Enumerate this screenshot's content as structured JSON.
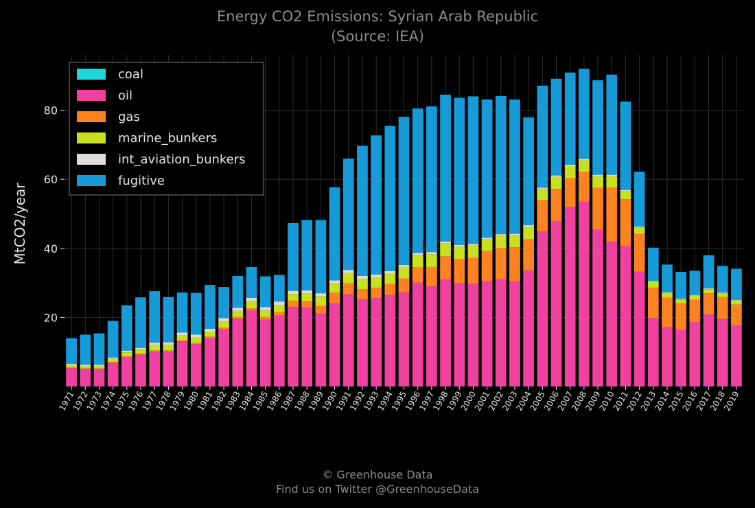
{
  "chart_data": {
    "type": "bar",
    "stacked": true,
    "title": "Energy CO2 Emissions: Syrian Arab Republic",
    "subtitle": "(Source: IEA)",
    "ylabel": "MtCO2/year",
    "xlabel": "",
    "ylim": [
      0,
      96
    ],
    "yticks": [
      20,
      40,
      60,
      80
    ],
    "grid": true,
    "legend_position": "top-left",
    "categories": [
      "1971",
      "1972",
      "1973",
      "1974",
      "1975",
      "1976",
      "1977",
      "1978",
      "1979",
      "1980",
      "1981",
      "1982",
      "1983",
      "1984",
      "1985",
      "1986",
      "1987",
      "1988",
      "1989",
      "1990",
      "1991",
      "1992",
      "1993",
      "1994",
      "1995",
      "1996",
      "1997",
      "1998",
      "1999",
      "2000",
      "2001",
      "2002",
      "2003",
      "2004",
      "2005",
      "2006",
      "2007",
      "2008",
      "2009",
      "2010",
      "2011",
      "2012",
      "2013",
      "2014",
      "2015",
      "2016",
      "2017",
      "2018",
      "2019"
    ],
    "series": [
      {
        "name": "coal",
        "color": "#1ed8d8",
        "values": [
          0,
          0,
          0,
          0,
          0,
          0,
          0,
          0,
          0,
          0,
          0,
          0,
          0,
          0,
          0,
          0,
          0,
          0,
          0,
          0,
          0,
          0,
          0,
          0,
          0,
          0,
          0,
          0,
          0,
          0,
          0,
          0,
          0,
          0,
          0,
          0,
          0,
          0,
          0,
          0,
          0,
          0,
          0,
          0,
          0,
          0,
          0,
          0,
          0
        ]
      },
      {
        "name": "oil",
        "color": "#f040a0",
        "values": [
          5.3,
          5.0,
          5.0,
          6.8,
          8.4,
          9.2,
          10.1,
          10.1,
          13.1,
          12.3,
          14.0,
          16.6,
          19.6,
          22.0,
          19.3,
          20.5,
          23.0,
          22.8,
          21.1,
          24.1,
          26.7,
          25.2,
          25.6,
          26.5,
          27.2,
          30.1,
          29.0,
          31.0,
          29.9,
          29.8,
          30.5,
          31.0,
          30.4,
          33.6,
          45.0,
          47.9,
          52.0,
          53.5,
          45.4,
          41.9,
          40.6,
          33.3,
          19.8,
          17.2,
          16.5,
          18.6,
          20.8,
          19.6,
          17.7
        ]
      },
      {
        "name": "gas",
        "color": "#ff8220",
        "values": [
          0.2,
          0.2,
          0.2,
          0.3,
          0.3,
          0.3,
          0.3,
          0.3,
          0.3,
          0.3,
          0.4,
          0.4,
          0.5,
          0.6,
          0.8,
          1.0,
          1.8,
          1.8,
          2.2,
          3.0,
          3.2,
          3.0,
          3.0,
          3.2,
          4.1,
          4.4,
          5.6,
          6.7,
          7.0,
          7.4,
          8.7,
          9.1,
          9.9,
          9.0,
          8.9,
          9.3,
          8.3,
          8.7,
          12.1,
          15.6,
          13.6,
          10.9,
          8.8,
          8.5,
          7.5,
          6.5,
          6.2,
          6.3,
          6.0
        ]
      },
      {
        "name": "marine_bunkers",
        "color": "#c8e020",
        "values": [
          0.7,
          0.7,
          0.7,
          0.9,
          1.2,
          1.2,
          1.6,
          1.7,
          1.5,
          1.6,
          1.5,
          1.9,
          1.8,
          2.0,
          1.9,
          2.1,
          2.0,
          2.3,
          2.8,
          2.8,
          3.0,
          3.0,
          3.0,
          3.0,
          3.3,
          3.6,
          3.7,
          3.8,
          3.6,
          3.6,
          3.4,
          3.6,
          3.5,
          3.7,
          3.3,
          3.5,
          3.5,
          3.3,
          3.4,
          3.4,
          2.4,
          1.9,
          1.7,
          1.4,
          1.2,
          1.2,
          1.2,
          1.1,
          1.2
        ]
      },
      {
        "name": "int_aviation_bunkers",
        "color": "#dcdcdc",
        "values": [
          0.4,
          0.4,
          0.4,
          0.4,
          0.5,
          0.5,
          0.7,
          0.7,
          0.7,
          0.8,
          0.8,
          0.9,
          0.9,
          1.1,
          1.0,
          1.0,
          0.9,
          0.9,
          0.9,
          0.8,
          0.8,
          0.8,
          0.8,
          0.7,
          0.6,
          0.6,
          0.6,
          0.5,
          0.5,
          0.5,
          0.5,
          0.4,
          0.4,
          0.4,
          0.4,
          0.4,
          0.4,
          0.4,
          0.4,
          0.4,
          0.3,
          0.2,
          0.2,
          0.2,
          0.2,
          0.2,
          0.2,
          0.2,
          0.2
        ]
      },
      {
        "name": "fugitive",
        "color": "#169bd8",
        "values": [
          7.4,
          8.7,
          9.1,
          10.6,
          13.1,
          14.6,
          14.9,
          13.1,
          11.6,
          12.1,
          12.7,
          9.0,
          9.2,
          8.9,
          8.9,
          7.7,
          19.6,
          20.4,
          21.2,
          27.0,
          32.3,
          37.7,
          40.3,
          42.1,
          42.9,
          41.8,
          42.2,
          42.5,
          42.6,
          42.7,
          40.0,
          40.0,
          38.9,
          31.2,
          29.5,
          28.0,
          26.7,
          26.1,
          27.4,
          29.0,
          25.6,
          15.9,
          9.7,
          8.0,
          7.8,
          7.0,
          9.6,
          7.7,
          9.0
        ]
      }
    ]
  },
  "footer": {
    "copyright": "© Greenhouse Data",
    "twitter": "Find us on Twitter @GreenhouseData"
  },
  "colors": {
    "background": "#000000",
    "grid": "#2e2e2e",
    "text": "#e6e6e6",
    "muted_text": "#8c8c8c"
  }
}
